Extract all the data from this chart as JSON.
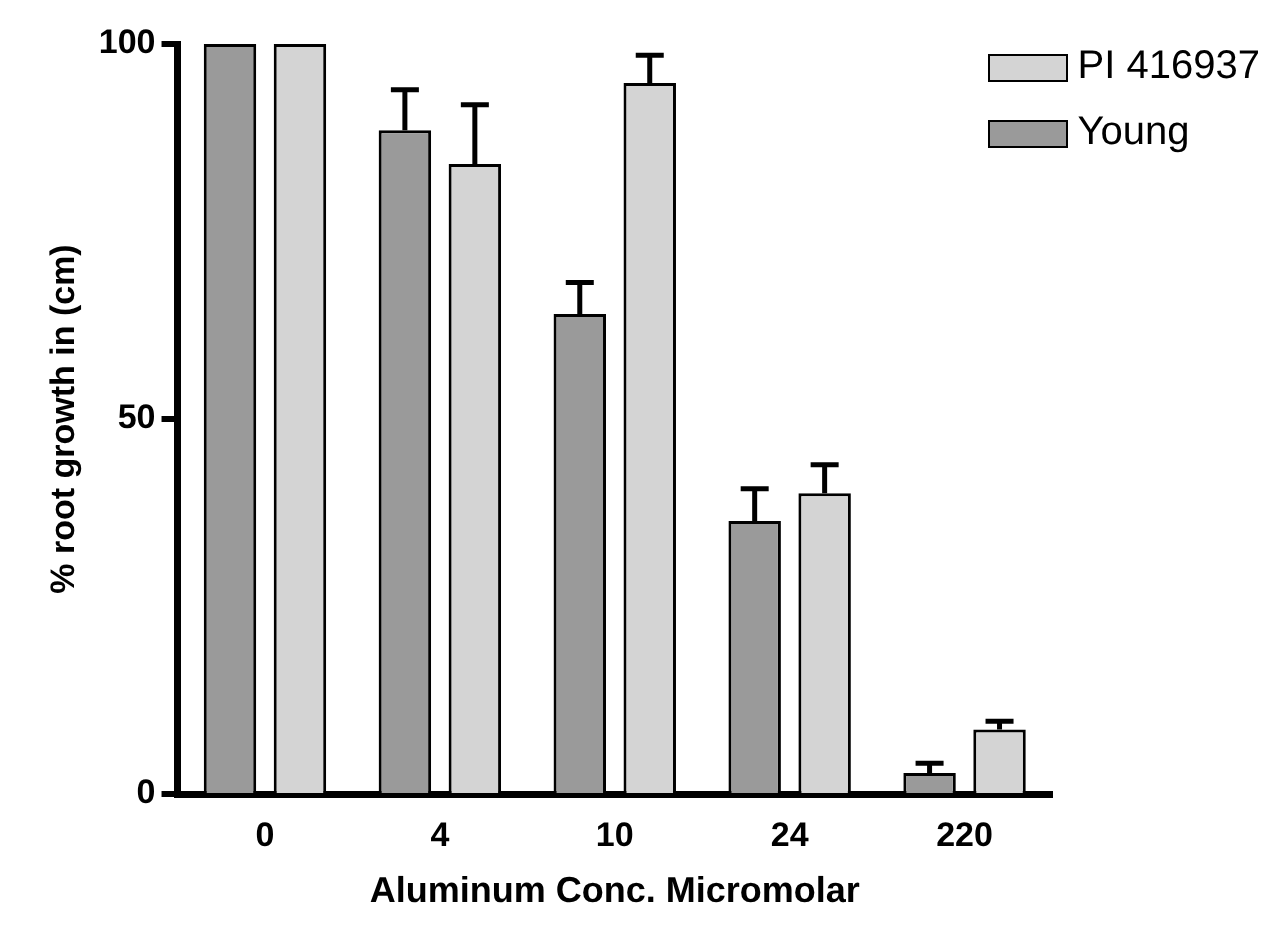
{
  "chart_data": {
    "type": "bar",
    "xlabel": "Aluminum Conc. Micromolar",
    "ylabel": "% root growth in (cm)",
    "categories": [
      "0",
      "4",
      "10",
      "24",
      "220"
    ],
    "series": [
      {
        "name": "Young",
        "color": "#9a9a9a",
        "values": [
          100,
          88.5,
          64,
          36.4,
          2.8
        ],
        "errors": [
          null,
          5.4,
          4.2,
          4.3,
          1.3
        ]
      },
      {
        "name": "PI 416937",
        "color": "#d4d4d4",
        "values": [
          100,
          84,
          94.8,
          40.1,
          8.6
        ],
        "errors": [
          null,
          7.9,
          3.7,
          3.8,
          1.1
        ]
      }
    ],
    "ylim": [
      0,
      100
    ],
    "yticks": [
      0,
      50,
      100
    ],
    "grid": false,
    "legend": "top right"
  }
}
